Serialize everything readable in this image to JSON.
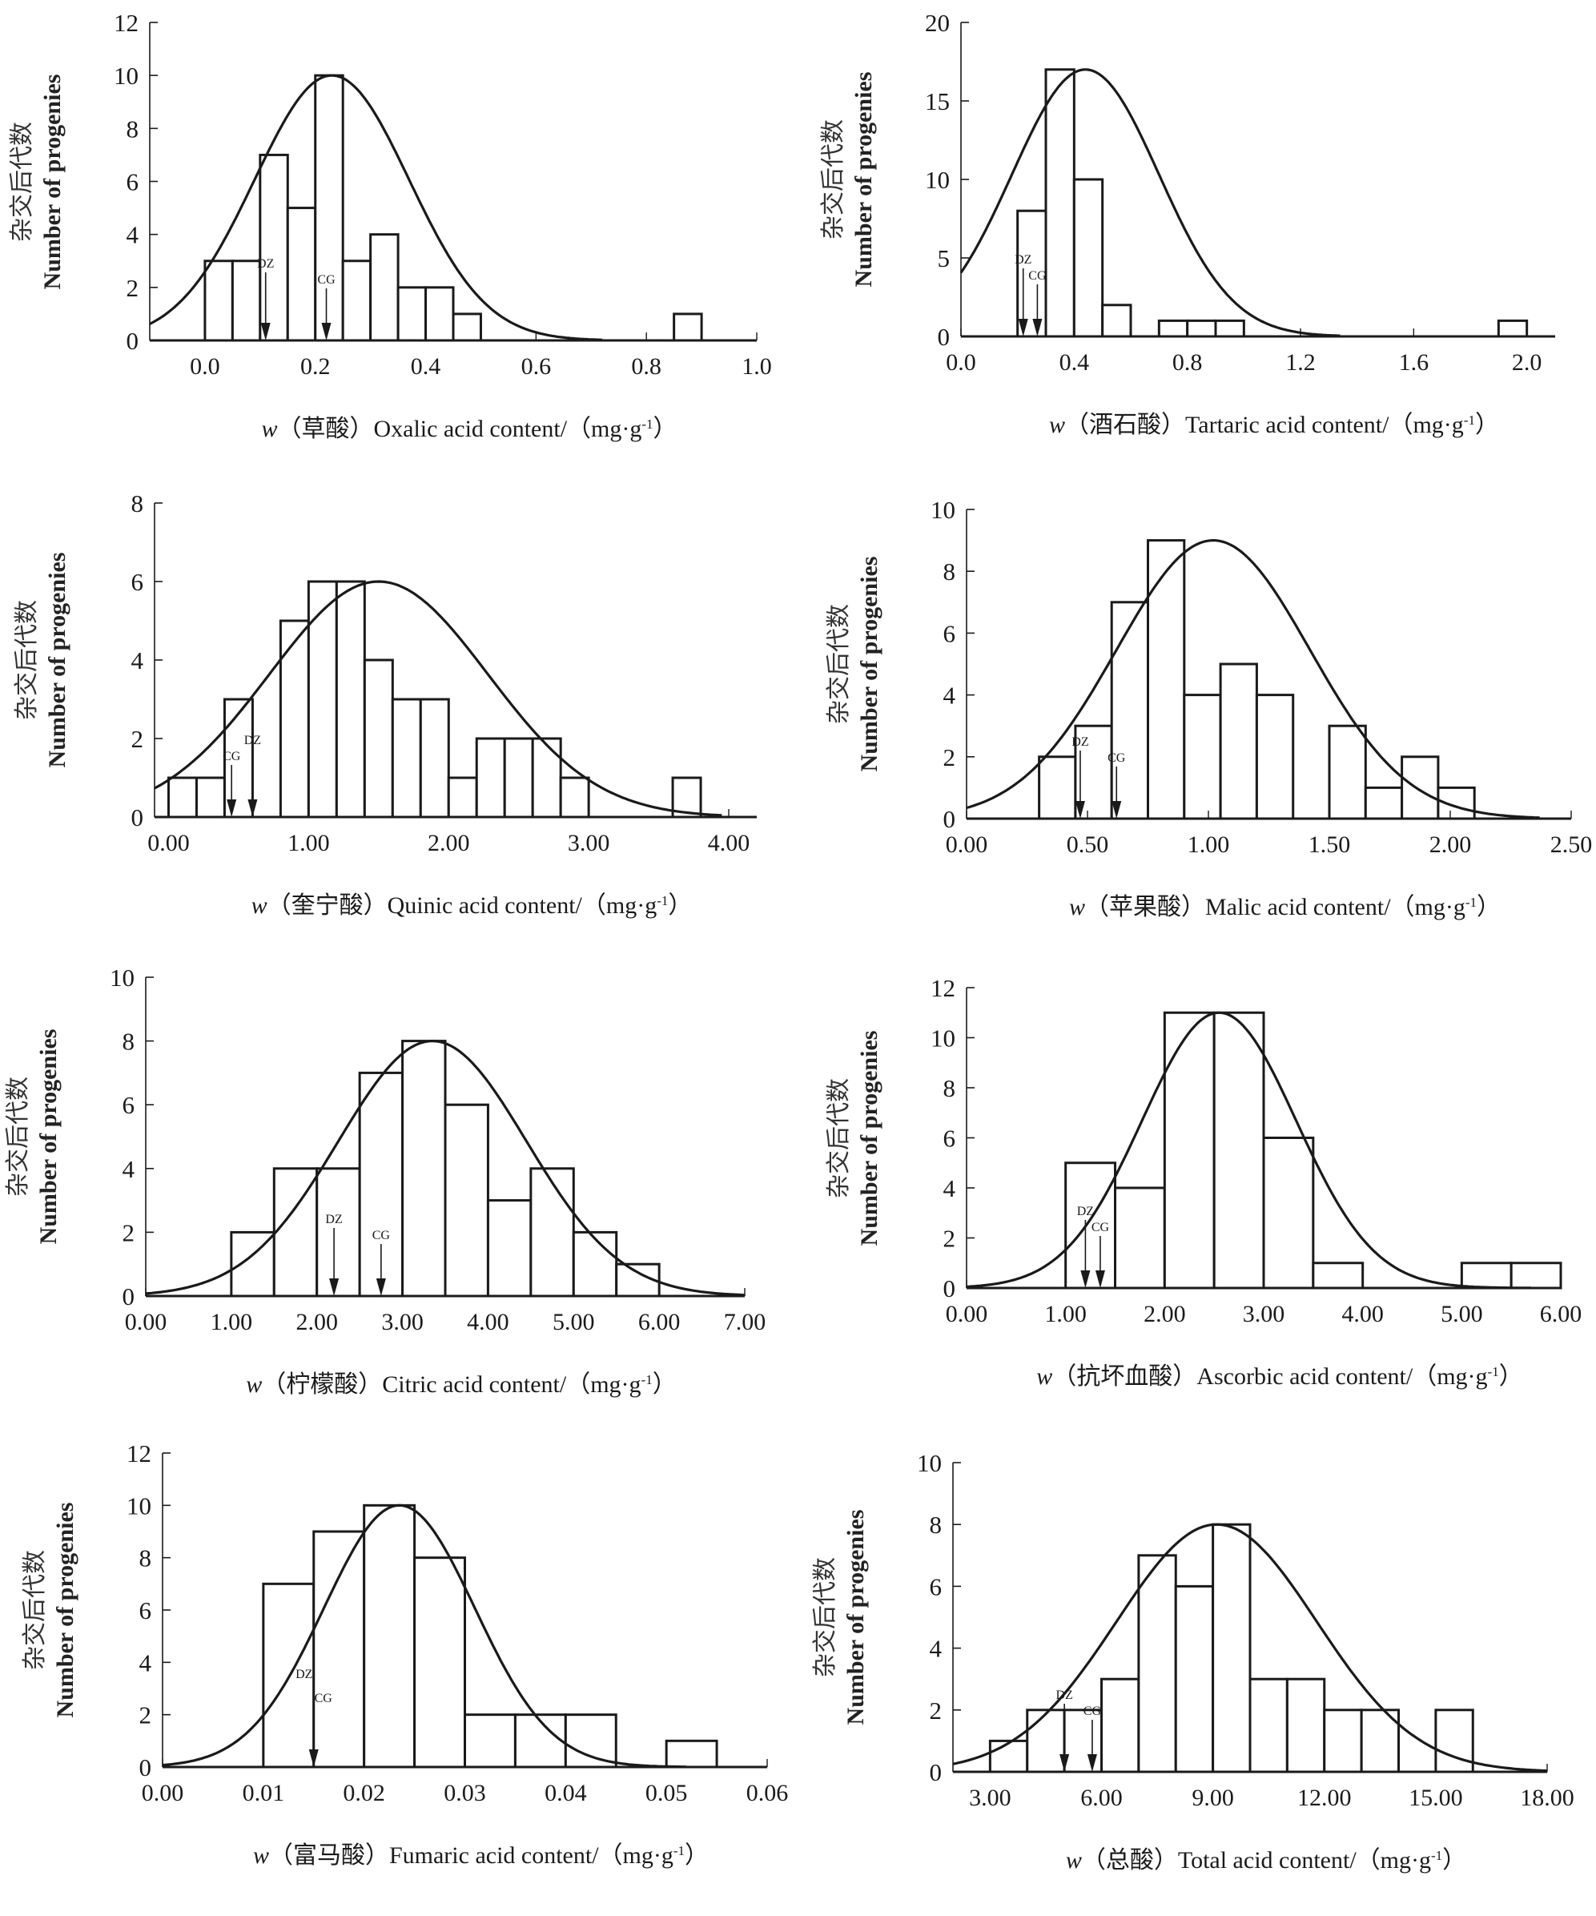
{
  "figure": {
    "y_label_cn": "杂交后代数",
    "y_label_en": "Number of progenies",
    "marker_labels": {
      "dz": "DZ",
      "cg": "CG"
    }
  },
  "chart_data": [
    {
      "type": "bar",
      "subtype": "histogram-with-normal-curve",
      "id": "oxalic",
      "xlabel_prefix": "w",
      "xlabel_cn": "（草酸）",
      "xlabel_en": "Oxalic acid content/（mg·g",
      "xlabel_sup": "-1",
      "xlabel_close": "）",
      "ylabel": "杂交后代数 Number of progenies",
      "xlim": [
        -0.1,
        1.0
      ],
      "ylim": [
        0,
        12
      ],
      "xticks": [
        0.0,
        0.2,
        0.4,
        0.6,
        0.8,
        1.0
      ],
      "xtick_labels": [
        "0.0",
        "0.2",
        "0.4",
        "0.6",
        "0.8",
        "1.0"
      ],
      "yticks": [
        0,
        2,
        4,
        6,
        8,
        10,
        12
      ],
      "ytick_labels": [
        "0",
        "2",
        "4",
        "6",
        "8",
        "10",
        "12"
      ],
      "bins": [
        [
          0.0,
          0.05,
          3
        ],
        [
          0.05,
          0.1,
          3
        ],
        [
          0.1,
          0.15,
          7
        ],
        [
          0.15,
          0.2,
          5
        ],
        [
          0.2,
          0.25,
          10
        ],
        [
          0.25,
          0.3,
          3
        ],
        [
          0.3,
          0.35,
          4
        ],
        [
          0.35,
          0.4,
          2
        ],
        [
          0.4,
          0.45,
          2
        ],
        [
          0.45,
          0.5,
          1
        ],
        [
          0.85,
          0.9,
          1
        ]
      ],
      "normal_curve": {
        "mean": 0.23,
        "sd": 0.14,
        "peak": 10,
        "x_range": [
          -0.1,
          0.72
        ]
      },
      "markers": {
        "DZ": 0.11,
        "CG": 0.22
      },
      "grid": false
    },
    {
      "type": "bar",
      "subtype": "histogram-with-normal-curve",
      "id": "tartaric",
      "xlabel_prefix": "w",
      "xlabel_cn": "（酒石酸）",
      "xlabel_en": "Tartaric acid content/（mg·g",
      "xlabel_sup": "-1",
      "xlabel_close": "）",
      "ylabel": "杂交后代数 Number of progenies",
      "xlim": [
        0.0,
        2.1
      ],
      "ylim": [
        0,
        20
      ],
      "xticks": [
        0.0,
        0.4,
        0.8,
        1.2,
        1.6,
        2.0
      ],
      "xtick_labels": [
        "0.0",
        "0.4",
        "0.8",
        "1.2",
        "1.6",
        "2.0"
      ],
      "yticks": [
        0,
        5,
        10,
        15,
        20
      ],
      "ytick_labels": [
        "0",
        "5",
        "10",
        "15",
        "20"
      ],
      "bins": [
        [
          0.2,
          0.3,
          8
        ],
        [
          0.3,
          0.4,
          17
        ],
        [
          0.4,
          0.5,
          10
        ],
        [
          0.5,
          0.6,
          2
        ],
        [
          0.7,
          0.8,
          1
        ],
        [
          0.8,
          0.9,
          1
        ],
        [
          0.9,
          1.0,
          1
        ],
        [
          1.9,
          2.0,
          1
        ]
      ],
      "normal_curve": {
        "mean": 0.44,
        "sd": 0.26,
        "peak": 17,
        "x_range": [
          0.0,
          1.34
        ]
      },
      "markers": {
        "DZ": 0.22,
        "CG": 0.27
      },
      "grid": false
    },
    {
      "type": "bar",
      "subtype": "histogram-with-normal-curve",
      "id": "quinic",
      "xlabel_prefix": "w",
      "xlabel_cn": "（奎宁酸）",
      "xlabel_en": "Quinic acid content/（mg·g",
      "xlabel_sup": "-1",
      "xlabel_close": "）",
      "ylabel": "杂交后代数 Number of progenies",
      "xlim": [
        -0.1,
        4.2
      ],
      "ylim": [
        0,
        8
      ],
      "xticks": [
        0,
        1,
        2,
        3,
        4
      ],
      "xtick_labels": [
        "0.00",
        "1.00",
        "2.00",
        "3.00",
        "4.00"
      ],
      "yticks": [
        0,
        2,
        4,
        6,
        8
      ],
      "ytick_labels": [
        "0",
        "2",
        "4",
        "6",
        "8"
      ],
      "bins": [
        [
          0.0,
          0.2,
          1
        ],
        [
          0.2,
          0.4,
          1
        ],
        [
          0.4,
          0.6,
          3
        ],
        [
          0.8,
          1.0,
          5
        ],
        [
          1.0,
          1.2,
          6
        ],
        [
          1.2,
          1.4,
          6
        ],
        [
          1.4,
          1.6,
          4
        ],
        [
          1.6,
          1.8,
          3
        ],
        [
          1.8,
          2.0,
          3
        ],
        [
          2.0,
          2.2,
          1
        ],
        [
          2.2,
          2.4,
          2
        ],
        [
          2.4,
          2.6,
          2
        ],
        [
          2.6,
          2.8,
          2
        ],
        [
          2.8,
          3.0,
          1
        ],
        [
          3.6,
          3.8,
          1
        ]
      ],
      "normal_curve": {
        "mean": 1.5,
        "sd": 0.78,
        "peak": 6,
        "x_range": [
          -0.1,
          3.95
        ]
      },
      "markers": {
        "DZ": 0.6,
        "CG": 0.45
      },
      "grid": false
    },
    {
      "type": "bar",
      "subtype": "histogram-with-normal-curve",
      "id": "malic",
      "xlabel_prefix": "w",
      "xlabel_cn": "（苹果酸）",
      "xlabel_en": "Malic acid content/（mg·g",
      "xlabel_sup": "-1",
      "xlabel_close": "）",
      "ylabel": "杂交后代数 Number of progenies",
      "xlim": [
        0.0,
        2.5
      ],
      "ylim": [
        0,
        10
      ],
      "xticks": [
        0,
        0.5,
        1.0,
        1.5,
        2.0,
        2.5
      ],
      "xtick_labels": [
        "0.00",
        "0.50",
        "1.00",
        "1.50",
        "2.00",
        "2.50"
      ],
      "yticks": [
        0,
        2,
        4,
        6,
        8,
        10
      ],
      "ytick_labels": [
        "0",
        "2",
        "4",
        "6",
        "8",
        "10"
      ],
      "bins": [
        [
          0.3,
          0.45,
          2
        ],
        [
          0.45,
          0.6,
          3
        ],
        [
          0.6,
          0.75,
          7
        ],
        [
          0.75,
          0.9,
          9
        ],
        [
          0.9,
          1.05,
          4
        ],
        [
          1.05,
          1.2,
          5
        ],
        [
          1.2,
          1.35,
          4
        ],
        [
          1.5,
          1.65,
          3
        ],
        [
          1.65,
          1.8,
          1
        ],
        [
          1.8,
          1.95,
          2
        ],
        [
          1.95,
          2.1,
          1
        ]
      ],
      "normal_curve": {
        "mean": 1.02,
        "sd": 0.4,
        "peak": 9,
        "x_range": [
          0.0,
          2.37
        ]
      },
      "markers": {
        "DZ": 0.47,
        "CG": 0.62
      },
      "grid": false
    },
    {
      "type": "bar",
      "subtype": "histogram-with-normal-curve",
      "id": "citric",
      "xlabel_prefix": "w",
      "xlabel_cn": "（柠檬酸）",
      "xlabel_en": "Citric acid content/（mg·g",
      "xlabel_sup": "-1",
      "xlabel_close": "）",
      "ylabel": "杂交后代数 Number of progenies",
      "xlim": [
        0.0,
        7.0
      ],
      "ylim": [
        0,
        10
      ],
      "xticks": [
        0,
        1,
        2,
        3,
        4,
        5,
        6,
        7
      ],
      "xtick_labels": [
        "0.00",
        "1.00",
        "2.00",
        "3.00",
        "4.00",
        "5.00",
        "6.00",
        "7.00"
      ],
      "yticks": [
        0,
        2,
        4,
        6,
        8,
        10
      ],
      "ytick_labels": [
        "0",
        "2",
        "4",
        "6",
        "8",
        "10"
      ],
      "bins": [
        [
          1.0,
          1.5,
          2
        ],
        [
          1.5,
          2.0,
          4
        ],
        [
          2.0,
          2.5,
          4
        ],
        [
          2.5,
          3.0,
          7
        ],
        [
          3.0,
          3.5,
          8
        ],
        [
          3.5,
          4.0,
          6
        ],
        [
          4.0,
          4.5,
          3
        ],
        [
          4.5,
          5.0,
          4
        ],
        [
          5.0,
          5.5,
          2
        ],
        [
          5.5,
          6.0,
          1
        ]
      ],
      "normal_curve": {
        "mean": 3.35,
        "sd": 1.1,
        "peak": 8,
        "x_range": [
          0.0,
          7.0
        ]
      },
      "markers": {
        "DZ": 2.2,
        "CG": 2.75
      },
      "grid": false
    },
    {
      "type": "bar",
      "subtype": "histogram-with-normal-curve",
      "id": "ascorbic",
      "xlabel_prefix": "w",
      "xlabel_cn": "（抗坏血酸）",
      "xlabel_en": "Ascorbic acid content/（mg·g",
      "xlabel_sup": "-1",
      "xlabel_close": "）",
      "ylabel": "杂交后代数 Number of progenies",
      "xlim": [
        0.0,
        6.0
      ],
      "ylim": [
        0,
        12
      ],
      "xticks": [
        0,
        1,
        2,
        3,
        4,
        5,
        6
      ],
      "xtick_labels": [
        "0.00",
        "1.00",
        "2.00",
        "3.00",
        "4.00",
        "5.00",
        "6.00"
      ],
      "yticks": [
        0,
        2,
        4,
        6,
        8,
        10,
        12
      ],
      "ytick_labels": [
        "0",
        "2",
        "4",
        "6",
        "8",
        "10",
        "12"
      ],
      "bins": [
        [
          1.0,
          1.5,
          5
        ],
        [
          1.5,
          2.0,
          4
        ],
        [
          2.0,
          2.5,
          11
        ],
        [
          2.5,
          3.0,
          11
        ],
        [
          3.0,
          3.5,
          6
        ],
        [
          3.5,
          4.0,
          1
        ],
        [
          5.0,
          5.5,
          1
        ],
        [
          5.5,
          6.0,
          1
        ]
      ],
      "normal_curve": {
        "mean": 2.55,
        "sd": 0.78,
        "peak": 11,
        "x_range": [
          0.0,
          5.7
        ]
      },
      "markers": {
        "DZ": 1.2,
        "CG": 1.35
      },
      "grid": false
    },
    {
      "type": "bar",
      "subtype": "histogram-with-normal-curve",
      "id": "fumaric",
      "xlabel_prefix": "w",
      "xlabel_cn": "（富马酸）",
      "xlabel_en": "Fumaric acid content/（mg·g",
      "xlabel_sup": "-1",
      "xlabel_close": "）",
      "ylabel": "杂交后代数 Number of progenies",
      "xlim": [
        0.0,
        0.06
      ],
      "ylim": [
        0,
        12
      ],
      "xticks": [
        0,
        0.01,
        0.02,
        0.03,
        0.04,
        0.05,
        0.06
      ],
      "xtick_labels": [
        "0.00",
        "0.01",
        "0.02",
        "0.03",
        "0.04",
        "0.05",
        "0.06"
      ],
      "yticks": [
        0,
        2,
        4,
        6,
        8,
        10,
        12
      ],
      "ytick_labels": [
        "0",
        "2",
        "4",
        "6",
        "8",
        "10",
        "12"
      ],
      "bins": [
        [
          0.01,
          0.015,
          7
        ],
        [
          0.015,
          0.02,
          9
        ],
        [
          0.02,
          0.025,
          10
        ],
        [
          0.025,
          0.03,
          8
        ],
        [
          0.03,
          0.035,
          2
        ],
        [
          0.035,
          0.04,
          2
        ],
        [
          0.04,
          0.045,
          2
        ],
        [
          0.05,
          0.055,
          1
        ]
      ],
      "normal_curve": {
        "mean": 0.0235,
        "sd": 0.0075,
        "peak": 10,
        "x_range": [
          0.0,
          0.052
        ]
      },
      "markers": {
        "DZ": 0.015,
        "CG": 0.015
      },
      "grid": false
    },
    {
      "type": "bar",
      "subtype": "histogram-with-normal-curve",
      "id": "total",
      "xlabel_prefix": "w",
      "xlabel_cn": "（总酸）",
      "xlabel_en": "Total acid content/（mg·g",
      "xlabel_sup": "-1",
      "xlabel_close": "）",
      "ylabel": "杂交后代数 Number of progenies",
      "xlim": [
        2.0,
        18.0
      ],
      "ylim": [
        0,
        10
      ],
      "xticks": [
        3,
        6,
        9,
        12,
        15,
        18
      ],
      "xtick_labels": [
        "3.00",
        "6.00",
        "9.00",
        "12.00",
        "15.00",
        "18.00"
      ],
      "yticks": [
        0,
        2,
        4,
        6,
        8,
        10
      ],
      "ytick_labels": [
        "0",
        "2",
        "4",
        "6",
        "8",
        "10"
      ],
      "bins": [
        [
          3,
          4,
          1
        ],
        [
          4,
          5,
          2
        ],
        [
          5,
          6,
          2
        ],
        [
          6,
          7,
          3
        ],
        [
          7,
          8,
          7
        ],
        [
          8,
          9,
          6
        ],
        [
          9,
          10,
          8
        ],
        [
          10,
          11,
          3
        ],
        [
          11,
          12,
          3
        ],
        [
          12,
          13,
          2
        ],
        [
          13,
          14,
          2
        ],
        [
          15,
          16,
          2
        ]
      ],
      "normal_curve": {
        "mean": 9.1,
        "sd": 2.7,
        "peak": 8,
        "x_range": [
          2.0,
          18.0
        ]
      },
      "markers": {
        "DZ": 5.0,
        "CG": 5.75
      },
      "grid": false
    }
  ]
}
